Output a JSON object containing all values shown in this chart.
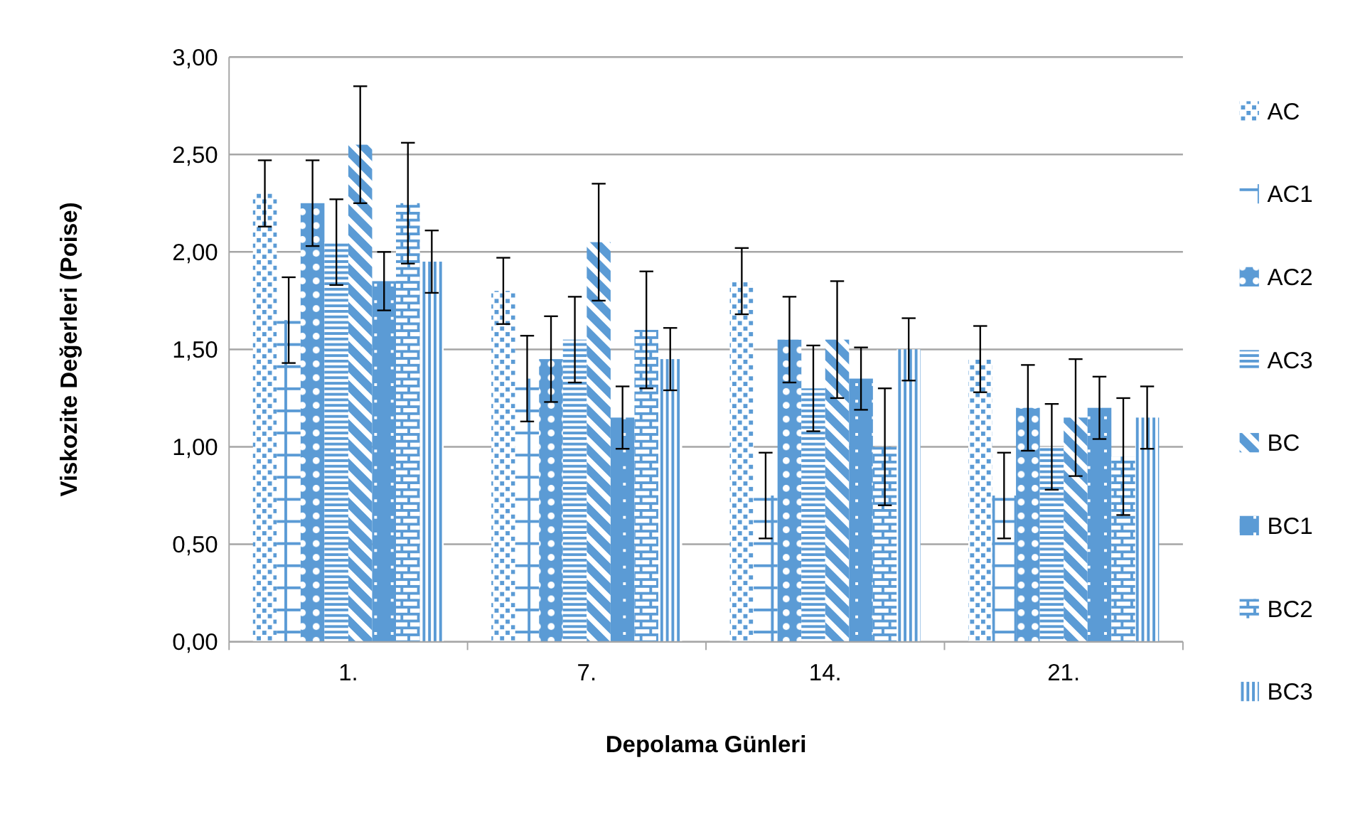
{
  "chart_data": {
    "type": "bar",
    "xlabel": "Depolama Günleri",
    "ylabel": "Viskozite Değerleri (Poise)",
    "categories": [
      "1.",
      "7.",
      "14.",
      "21."
    ],
    "ylim": [
      0,
      3
    ],
    "yticks": [
      {
        "value": 0,
        "label": "0,00"
      },
      {
        "value": 0.5,
        "label": "0,50"
      },
      {
        "value": 1,
        "label": "1,00"
      },
      {
        "value": 1.5,
        "label": "1,50"
      },
      {
        "value": 2,
        "label": "2,00"
      },
      {
        "value": 2.5,
        "label": "2,50"
      },
      {
        "value": 3,
        "label": "3,00"
      }
    ],
    "grid": "y",
    "legend": "right",
    "series": [
      {
        "name": "AC",
        "color": "#5b9bd5",
        "values": [
          2.3,
          1.8,
          1.85,
          1.45
        ],
        "errors": [
          0.17,
          0.17,
          0.17,
          0.17
        ]
      },
      {
        "name": "AC1",
        "color": "#5b9bd5",
        "values": [
          1.65,
          1.35,
          0.75,
          0.75
        ],
        "errors": [
          0.22,
          0.22,
          0.22,
          0.22
        ]
      },
      {
        "name": "AC2",
        "color": "#5b9bd5",
        "values": [
          2.25,
          1.45,
          1.55,
          1.2
        ],
        "errors": [
          0.22,
          0.22,
          0.22,
          0.22
        ]
      },
      {
        "name": "AC3",
        "color": "#5b9bd5",
        "values": [
          2.05,
          1.55,
          1.3,
          1.0
        ],
        "errors": [
          0.22,
          0.22,
          0.22,
          0.22
        ]
      },
      {
        "name": "BC",
        "color": "#5b9bd5",
        "values": [
          2.55,
          2.05,
          1.55,
          1.15
        ],
        "errors": [
          0.3,
          0.3,
          0.3,
          0.3
        ]
      },
      {
        "name": "BC1",
        "color": "#5b9bd5",
        "values": [
          1.85,
          1.15,
          1.35,
          1.2
        ],
        "errors": [
          0.15,
          0.16,
          0.16,
          0.16
        ]
      },
      {
        "name": "BC2",
        "color": "#5b9bd5",
        "values": [
          2.25,
          1.6,
          1.0,
          0.95
        ],
        "errors": [
          0.31,
          0.3,
          0.3,
          0.3
        ]
      },
      {
        "name": "BC3",
        "color": "#5b9bd5",
        "values": [
          1.95,
          1.45,
          1.5,
          1.15
        ],
        "errors": [
          0.16,
          0.16,
          0.16,
          0.16
        ]
      }
    ]
  }
}
